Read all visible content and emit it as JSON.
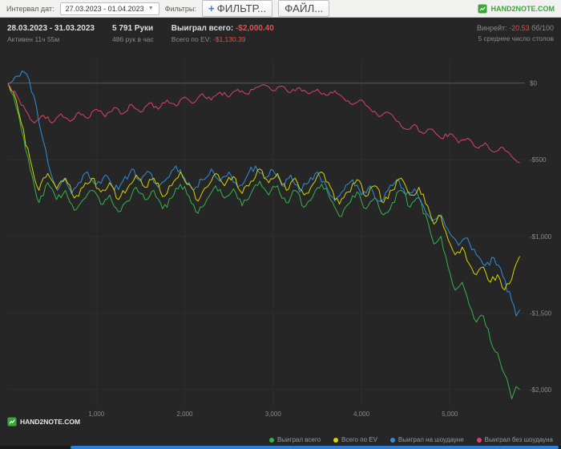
{
  "toolbar": {
    "date_interval_label": "Интервал дат:",
    "date_range_value": "27.03.2023 - 01.04.2023",
    "dropdown_caret": "▼",
    "filters_label": "Фильтры:",
    "add_filter_plus": "+",
    "add_filter_button": "ФИЛЬТР...",
    "file_button": "ФАЙЛ...",
    "brand": "HAND2NOTE.COM"
  },
  "stats": {
    "date_range": "28.03.2023 - 31.03.2023",
    "active_time": "Активен 11ч 55м",
    "hands_count": "5 791 Руки",
    "hands_per_hour": "486 рук в час",
    "won_total_label": "Выиграл всего:",
    "won_total_value": "-$2,000.40",
    "ev_total_label": "Всего по EV:",
    "ev_total_value": "-$1,130.39",
    "winrate_label": "Винрейт:",
    "winrate_value": "-20.53",
    "winrate_units": "бб/100",
    "avg_tables": "5 среднее число столов"
  },
  "footer": {
    "brand": "HAND2NOTE.COM"
  },
  "colors": {
    "background": "#262626",
    "accent_green": "#3aa63a",
    "negative_red": "#e0524a",
    "scrollbar_blue": "#2d7fd6",
    "grid": "#2e2e2e",
    "zero_line": "#585858",
    "axis_text": "#8a8a8a"
  },
  "chart_data": {
    "type": "line",
    "title": "",
    "xlabel": "",
    "ylabel": "",
    "x_axis": {
      "min": 0,
      "max": 5850,
      "ticks": [
        1000,
        2000,
        3000,
        4000,
        5000
      ],
      "tick_labels": [
        "1,000",
        "2,000",
        "3,000",
        "4,000",
        "5,000"
      ]
    },
    "y_axis": {
      "min": -2100,
      "max": 150,
      "ticks": [
        0,
        -500,
        -1000,
        -1500,
        -2000
      ],
      "tick_labels": [
        "$0",
        "-$500",
        "-$1,000",
        "-$1,500",
        "-$2,000"
      ]
    },
    "legend_position": "bottom-right",
    "series": [
      {
        "name": "Выиграл всего",
        "color": "#35b44a",
        "points": [
          [
            0,
            0
          ],
          [
            60,
            -80
          ],
          [
            150,
            -300
          ],
          [
            250,
            -560
          ],
          [
            350,
            -780
          ],
          [
            450,
            -650
          ],
          [
            550,
            -760
          ],
          [
            650,
            -700
          ],
          [
            750,
            -830
          ],
          [
            850,
            -760
          ],
          [
            950,
            -700
          ],
          [
            1050,
            -790
          ],
          [
            1150,
            -730
          ],
          [
            1250,
            -840
          ],
          [
            1350,
            -770
          ],
          [
            1450,
            -680
          ],
          [
            1550,
            -760
          ],
          [
            1650,
            -700
          ],
          [
            1750,
            -820
          ],
          [
            1850,
            -750
          ],
          [
            1950,
            -660
          ],
          [
            2050,
            -740
          ],
          [
            2150,
            -850
          ],
          [
            2250,
            -760
          ],
          [
            2350,
            -670
          ],
          [
            2450,
            -750
          ],
          [
            2550,
            -690
          ],
          [
            2650,
            -800
          ],
          [
            2750,
            -720
          ],
          [
            2850,
            -640
          ],
          [
            2950,
            -730
          ],
          [
            3050,
            -670
          ],
          [
            3150,
            -780
          ],
          [
            3250,
            -700
          ],
          [
            3350,
            -810
          ],
          [
            3450,
            -740
          ],
          [
            3550,
            -660
          ],
          [
            3650,
            -760
          ],
          [
            3750,
            -870
          ],
          [
            3850,
            -790
          ],
          [
            3950,
            -710
          ],
          [
            4050,
            -820
          ],
          [
            4150,
            -750
          ],
          [
            4250,
            -860
          ],
          [
            4350,
            -780
          ],
          [
            4450,
            -700
          ],
          [
            4550,
            -810
          ],
          [
            4650,
            -750
          ],
          [
            4750,
            -900
          ],
          [
            4820,
            -1050
          ],
          [
            4900,
            -1000
          ],
          [
            4980,
            -1200
          ],
          [
            5060,
            -1350
          ],
          [
            5140,
            -1300
          ],
          [
            5220,
            -1450
          ],
          [
            5300,
            -1560
          ],
          [
            5380,
            -1520
          ],
          [
            5460,
            -1680
          ],
          [
            5540,
            -1760
          ],
          [
            5620,
            -1900
          ],
          [
            5700,
            -2060
          ],
          [
            5750,
            -1980
          ],
          [
            5791,
            -2000
          ]
        ]
      },
      {
        "name": "Всего по EV",
        "color": "#d4d400",
        "points": [
          [
            0,
            0
          ],
          [
            60,
            -60
          ],
          [
            150,
            -260
          ],
          [
            250,
            -500
          ],
          [
            350,
            -700
          ],
          [
            450,
            -590
          ],
          [
            550,
            -690
          ],
          [
            650,
            -620
          ],
          [
            750,
            -750
          ],
          [
            850,
            -680
          ],
          [
            950,
            -620
          ],
          [
            1050,
            -710
          ],
          [
            1150,
            -650
          ],
          [
            1250,
            -760
          ],
          [
            1350,
            -690
          ],
          [
            1450,
            -600
          ],
          [
            1550,
            -680
          ],
          [
            1650,
            -620
          ],
          [
            1750,
            -740
          ],
          [
            1850,
            -670
          ],
          [
            1950,
            -580
          ],
          [
            2050,
            -660
          ],
          [
            2150,
            -770
          ],
          [
            2250,
            -680
          ],
          [
            2350,
            -590
          ],
          [
            2450,
            -670
          ],
          [
            2550,
            -610
          ],
          [
            2650,
            -720
          ],
          [
            2750,
            -640
          ],
          [
            2850,
            -560
          ],
          [
            2950,
            -650
          ],
          [
            3050,
            -590
          ],
          [
            3150,
            -700
          ],
          [
            3250,
            -620
          ],
          [
            3350,
            -730
          ],
          [
            3450,
            -660
          ],
          [
            3550,
            -580
          ],
          [
            3650,
            -680
          ],
          [
            3750,
            -790
          ],
          [
            3850,
            -710
          ],
          [
            3950,
            -630
          ],
          [
            4050,
            -740
          ],
          [
            4150,
            -670
          ],
          [
            4250,
            -780
          ],
          [
            4350,
            -700
          ],
          [
            4450,
            -620
          ],
          [
            4550,
            -730
          ],
          [
            4650,
            -680
          ],
          [
            4750,
            -800
          ],
          [
            4820,
            -920
          ],
          [
            4900,
            -870
          ],
          [
            4980,
            -1020
          ],
          [
            5060,
            -1120
          ],
          [
            5140,
            -1070
          ],
          [
            5220,
            -1180
          ],
          [
            5300,
            -1250
          ],
          [
            5380,
            -1200
          ],
          [
            5460,
            -1300
          ],
          [
            5540,
            -1250
          ],
          [
            5620,
            -1350
          ],
          [
            5700,
            -1280
          ],
          [
            5750,
            -1180
          ],
          [
            5791,
            -1130
          ]
        ]
      },
      {
        "name": "Выиграл на шоудауне",
        "color": "#2f8fde",
        "points": [
          [
            0,
            0
          ],
          [
            80,
            40
          ],
          [
            160,
            80
          ],
          [
            240,
            20
          ],
          [
            320,
            -150
          ],
          [
            400,
            -380
          ],
          [
            480,
            -580
          ],
          [
            560,
            -700
          ],
          [
            640,
            -620
          ],
          [
            720,
            -720
          ],
          [
            800,
            -650
          ],
          [
            900,
            -580
          ],
          [
            1000,
            -660
          ],
          [
            1100,
            -600
          ],
          [
            1200,
            -700
          ],
          [
            1300,
            -640
          ],
          [
            1400,
            -560
          ],
          [
            1500,
            -640
          ],
          [
            1600,
            -580
          ],
          [
            1700,
            -680
          ],
          [
            1800,
            -620
          ],
          [
            1900,
            -540
          ],
          [
            2000,
            -620
          ],
          [
            2100,
            -700
          ],
          [
            2200,
            -630
          ],
          [
            2300,
            -560
          ],
          [
            2400,
            -640
          ],
          [
            2500,
            -580
          ],
          [
            2600,
            -680
          ],
          [
            2700,
            -610
          ],
          [
            2800,
            -540
          ],
          [
            2900,
            -620
          ],
          [
            3000,
            -570
          ],
          [
            3100,
            -670
          ],
          [
            3200,
            -600
          ],
          [
            3300,
            -710
          ],
          [
            3400,
            -650
          ],
          [
            3500,
            -580
          ],
          [
            3600,
            -670
          ],
          [
            3700,
            -770
          ],
          [
            3800,
            -700
          ],
          [
            3900,
            -630
          ],
          [
            4000,
            -730
          ],
          [
            4100,
            -670
          ],
          [
            4200,
            -770
          ],
          [
            4300,
            -700
          ],
          [
            4400,
            -630
          ],
          [
            4500,
            -730
          ],
          [
            4600,
            -690
          ],
          [
            4700,
            -800
          ],
          [
            4800,
            -900
          ],
          [
            4900,
            -860
          ],
          [
            5000,
            -980
          ],
          [
            5100,
            -1060
          ],
          [
            5200,
            -1010
          ],
          [
            5300,
            -1120
          ],
          [
            5400,
            -1190
          ],
          [
            5500,
            -1140
          ],
          [
            5600,
            -1260
          ],
          [
            5700,
            -1420
          ],
          [
            5750,
            -1520
          ],
          [
            5791,
            -1480
          ]
        ]
      },
      {
        "name": "Выиграл без шоудауна",
        "color": "#d9436d",
        "points": [
          [
            0,
            0
          ],
          [
            100,
            -80
          ],
          [
            200,
            -180
          ],
          [
            300,
            -260
          ],
          [
            400,
            -210
          ],
          [
            500,
            -260
          ],
          [
            600,
            -200
          ],
          [
            700,
            -250
          ],
          [
            800,
            -190
          ],
          [
            900,
            -230
          ],
          [
            1000,
            -170
          ],
          [
            1100,
            -220
          ],
          [
            1200,
            -160
          ],
          [
            1300,
            -200
          ],
          [
            1400,
            -140
          ],
          [
            1500,
            -190
          ],
          [
            1600,
            -130
          ],
          [
            1700,
            -170
          ],
          [
            1800,
            -110
          ],
          [
            1900,
            -150
          ],
          [
            2000,
            -90
          ],
          [
            2100,
            -130
          ],
          [
            2200,
            -70
          ],
          [
            2300,
            -110
          ],
          [
            2400,
            -60
          ],
          [
            2500,
            -90
          ],
          [
            2600,
            -40
          ],
          [
            2700,
            -70
          ],
          [
            2800,
            -30
          ],
          [
            2900,
            -10
          ],
          [
            3000,
            -50
          ],
          [
            3100,
            -20
          ],
          [
            3200,
            -60
          ],
          [
            3300,
            -30
          ],
          [
            3400,
            -70
          ],
          [
            3500,
            -40
          ],
          [
            3600,
            -80
          ],
          [
            3700,
            -50
          ],
          [
            3800,
            -100
          ],
          [
            3900,
            -140
          ],
          [
            4000,
            -110
          ],
          [
            4100,
            -170
          ],
          [
            4200,
            -220
          ],
          [
            4300,
            -190
          ],
          [
            4400,
            -250
          ],
          [
            4500,
            -300
          ],
          [
            4600,
            -270
          ],
          [
            4700,
            -330
          ],
          [
            4800,
            -300
          ],
          [
            4900,
            -360
          ],
          [
            5000,
            -330
          ],
          [
            5100,
            -390
          ],
          [
            5200,
            -360
          ],
          [
            5300,
            -420
          ],
          [
            5400,
            -390
          ],
          [
            5500,
            -450
          ],
          [
            5600,
            -420
          ],
          [
            5700,
            -480
          ],
          [
            5791,
            -520
          ]
        ]
      }
    ],
    "noise": {
      "step": 25,
      "amps": [
        28,
        28,
        28,
        16
      ],
      "seeds": [
        3,
        7,
        11,
        19
      ]
    }
  }
}
